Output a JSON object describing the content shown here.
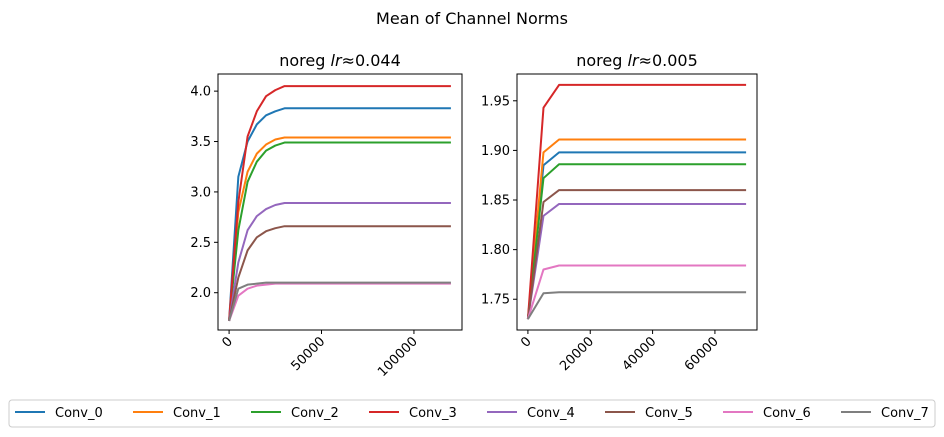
{
  "figure_title": "Mean of Channel Norms",
  "legend_entries": [
    "Conv_0",
    "Conv_1",
    "Conv_2",
    "Conv_3",
    "Conv_4",
    "Conv_5",
    "Conv_6",
    "Conv_7"
  ],
  "colors": {
    "Conv_0": "#1f77b4",
    "Conv_1": "#ff7f0e",
    "Conv_2": "#2ca02c",
    "Conv_3": "#d62728",
    "Conv_4": "#9467bd",
    "Conv_5": "#8c564b",
    "Conv_6": "#e377c2",
    "Conv_7": "#7f7f7f"
  },
  "chart_data": [
    {
      "type": "line",
      "title": "noreg lr≈0.044",
      "title_prefix": "noreg ",
      "title_lr": "lr",
      "title_value": "≈0.044",
      "xlim": [
        -6000,
        126000
      ],
      "ylim": [
        1.63,
        4.17
      ],
      "xticks": [
        0,
        50000,
        100000
      ],
      "xtick_labels": [
        "0",
        "50000",
        "100000"
      ],
      "yticks": [
        2.0,
        2.5,
        3.0,
        3.5,
        4.0
      ],
      "ytick_labels": [
        "2.0",
        "2.5",
        "3.0",
        "3.5",
        "4.0"
      ],
      "x": [
        0,
        5000,
        10000,
        15000,
        20000,
        25000,
        30000,
        120000
      ],
      "series": [
        {
          "name": "Conv_0",
          "values": [
            1.72,
            3.15,
            3.5,
            3.67,
            3.76,
            3.8,
            3.83,
            3.83
          ]
        },
        {
          "name": "Conv_1",
          "values": [
            1.72,
            2.8,
            3.2,
            3.38,
            3.47,
            3.52,
            3.54,
            3.54
          ]
        },
        {
          "name": "Conv_2",
          "values": [
            1.72,
            2.62,
            3.1,
            3.3,
            3.41,
            3.46,
            3.49,
            3.49
          ]
        },
        {
          "name": "Conv_3",
          "values": [
            1.72,
            2.9,
            3.55,
            3.8,
            3.95,
            4.01,
            4.05,
            4.05
          ]
        },
        {
          "name": "Conv_4",
          "values": [
            1.72,
            2.3,
            2.62,
            2.76,
            2.83,
            2.87,
            2.89,
            2.89
          ]
        },
        {
          "name": "Conv_5",
          "values": [
            1.72,
            2.15,
            2.42,
            2.55,
            2.61,
            2.64,
            2.66,
            2.66
          ]
        },
        {
          "name": "Conv_6",
          "values": [
            1.72,
            1.97,
            2.04,
            2.07,
            2.08,
            2.09,
            2.09,
            2.09
          ]
        },
        {
          "name": "Conv_7",
          "values": [
            1.72,
            2.04,
            2.08,
            2.09,
            2.1,
            2.1,
            2.1,
            2.1
          ]
        }
      ]
    },
    {
      "type": "line",
      "title": "noreg lr≈0.005",
      "title_prefix": "noreg ",
      "title_lr": "lr",
      "title_value": "≈0.005",
      "xlim": [
        -3500,
        73500
      ],
      "ylim": [
        1.719,
        1.977
      ],
      "xticks": [
        0,
        20000,
        40000,
        60000
      ],
      "xtick_labels": [
        "0",
        "20000",
        "40000",
        "60000"
      ],
      "yticks": [
        1.75,
        1.8,
        1.85,
        1.9,
        1.95
      ],
      "ytick_labels": [
        "1.75",
        "1.80",
        "1.85",
        "1.90",
        "1.95"
      ],
      "x": [
        0,
        5000,
        10000,
        70000
      ],
      "series": [
        {
          "name": "Conv_0",
          "values": [
            1.73,
            1.885,
            1.898,
            1.898
          ]
        },
        {
          "name": "Conv_1",
          "values": [
            1.73,
            1.898,
            1.911,
            1.911
          ]
        },
        {
          "name": "Conv_2",
          "values": [
            1.73,
            1.872,
            1.886,
            1.886
          ]
        },
        {
          "name": "Conv_3",
          "values": [
            1.73,
            1.943,
            1.966,
            1.966
          ]
        },
        {
          "name": "Conv_4",
          "values": [
            1.73,
            1.834,
            1.846,
            1.846
          ]
        },
        {
          "name": "Conv_5",
          "values": [
            1.73,
            1.848,
            1.86,
            1.86
          ]
        },
        {
          "name": "Conv_6",
          "values": [
            1.73,
            1.78,
            1.784,
            1.784
          ]
        },
        {
          "name": "Conv_7",
          "values": [
            1.73,
            1.756,
            1.757,
            1.757
          ]
        }
      ]
    }
  ]
}
